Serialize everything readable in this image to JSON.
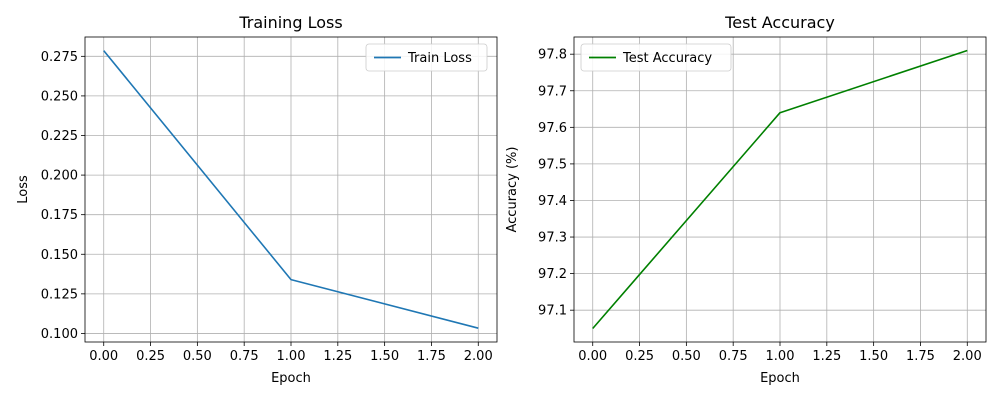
{
  "chart_data": [
    {
      "type": "line",
      "title": "Training Loss",
      "xlabel": "Epoch",
      "ylabel": "Loss",
      "xlim": [
        -0.1,
        2.1
      ],
      "ylim": [
        0.0946,
        0.2872
      ],
      "xticks": [
        "0.00",
        "0.25",
        "0.50",
        "0.75",
        "1.00",
        "1.25",
        "1.50",
        "1.75",
        "2.00"
      ],
      "yticks": [
        "0.100",
        "0.125",
        "0.150",
        "0.175",
        "0.200",
        "0.225",
        "0.250",
        "0.275"
      ],
      "grid": true,
      "legend_position": "upper right",
      "series": [
        {
          "name": "Train Loss",
          "color": "#1f77b4",
          "x": [
            0,
            1,
            2
          ],
          "y": [
            0.2786,
            0.134,
            0.1033
          ]
        }
      ]
    },
    {
      "type": "line",
      "title": "Test Accuracy",
      "xlabel": "Epoch",
      "ylabel": "Accuracy (%)",
      "xlim": [
        -0.1,
        2.1
      ],
      "ylim": [
        97.013,
        97.847
      ],
      "xticks": [
        "0.00",
        "0.25",
        "0.50",
        "0.75",
        "1.00",
        "1.25",
        "1.50",
        "1.75",
        "2.00"
      ],
      "yticks": [
        "97.1",
        "97.2",
        "97.3",
        "97.4",
        "97.5",
        "97.6",
        "97.7",
        "97.8"
      ],
      "grid": true,
      "legend_position": "upper left",
      "series": [
        {
          "name": "Test Accuracy",
          "color": "#008000",
          "x": [
            0,
            1,
            2
          ],
          "y": [
            97.05,
            97.64,
            97.81
          ]
        }
      ]
    }
  ]
}
